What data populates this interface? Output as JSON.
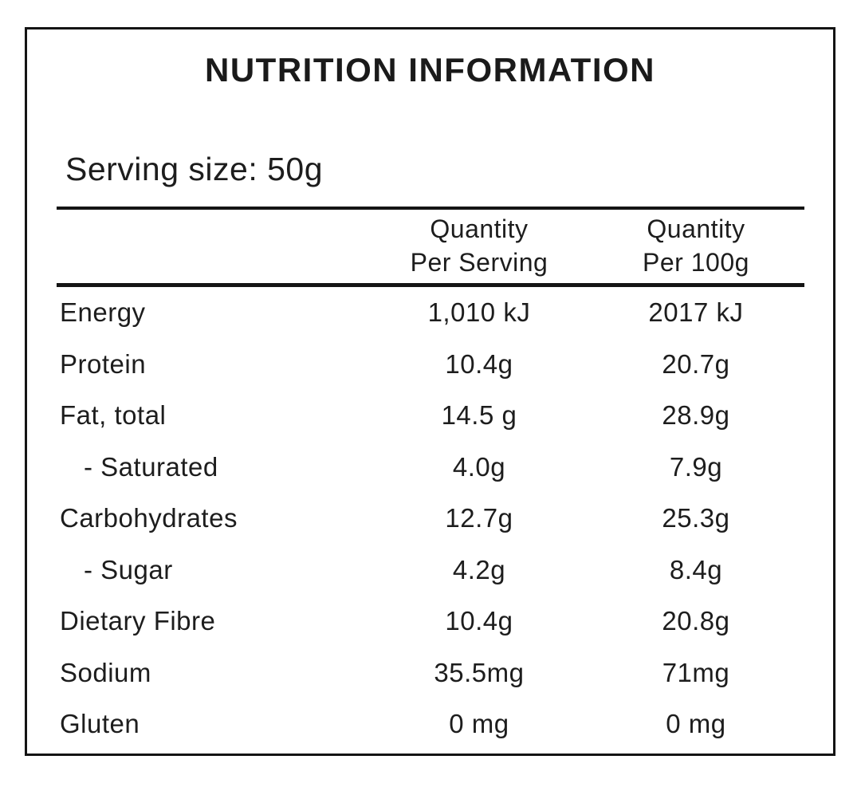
{
  "colors": {
    "background": "#ffffff",
    "text": "#1d1d1d",
    "border": "#141414",
    "rule": "#141414"
  },
  "label": {
    "title": "NUTRITION INFORMATION",
    "serving_size": "Serving size: 50g",
    "table": {
      "header": {
        "per_serving": [
          "Quantity",
          "Per Serving"
        ],
        "per_100g": [
          "Quantity",
          "Per 100g"
        ]
      },
      "rows": [
        {
          "nutrient": "Energy",
          "per_serving": "1,010 kJ",
          "per_100g": "2017 kJ",
          "indent": false
        },
        {
          "nutrient": "Protein",
          "per_serving": "10.4g",
          "per_100g": "20.7g",
          "indent": false
        },
        {
          "nutrient": "Fat, total",
          "per_serving": "14.5 g",
          "per_100g": "28.9g",
          "indent": false
        },
        {
          "nutrient": "- Saturated",
          "per_serving": "4.0g",
          "per_100g": "7.9g",
          "indent": true
        },
        {
          "nutrient": "Carbohydrates",
          "per_serving": "12.7g",
          "per_100g": "25.3g",
          "indent": false
        },
        {
          "nutrient": "- Sugar",
          "per_serving": "4.2g",
          "per_100g": "8.4g",
          "indent": true
        },
        {
          "nutrient": "Dietary Fibre",
          "per_serving": "10.4g",
          "per_100g": "20.8g",
          "indent": false
        },
        {
          "nutrient": "Sodium",
          "per_serving": "35.5mg",
          "per_100g": "71mg",
          "indent": false
        },
        {
          "nutrient": "Gluten",
          "per_serving": "0 mg",
          "per_100g": "0 mg",
          "indent": false
        }
      ]
    }
  }
}
